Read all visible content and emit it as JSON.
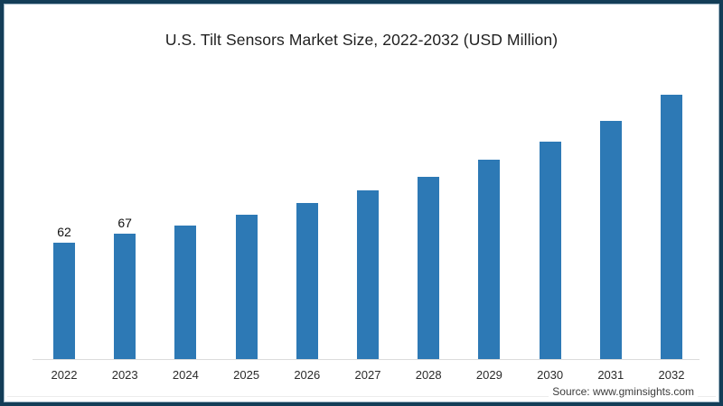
{
  "frame": {
    "border_color": "#133d57"
  },
  "chart_data": {
    "type": "bar",
    "title": "U.S. Tilt Sensors Market Size, 2022-2032 (USD Million)",
    "categories": [
      "2022",
      "2023",
      "2024",
      "2025",
      "2026",
      "2027",
      "2028",
      "2029",
      "2030",
      "2031",
      "2032"
    ],
    "values": [
      62,
      67,
      71,
      77,
      83,
      90,
      97,
      106,
      116,
      127,
      141
    ],
    "value_labels": [
      "62",
      "67",
      "",
      "",
      "",
      "",
      "",
      "",
      "",
      "",
      ""
    ],
    "xlabel": "",
    "ylabel": "",
    "ylim": [
      0,
      189
    ],
    "grid": false,
    "legend": "none",
    "bar_color": "#2d79b5",
    "axis_line_color": "#dcdcdc"
  },
  "footer": {
    "source_label": "Source: www.gminsights.com"
  }
}
